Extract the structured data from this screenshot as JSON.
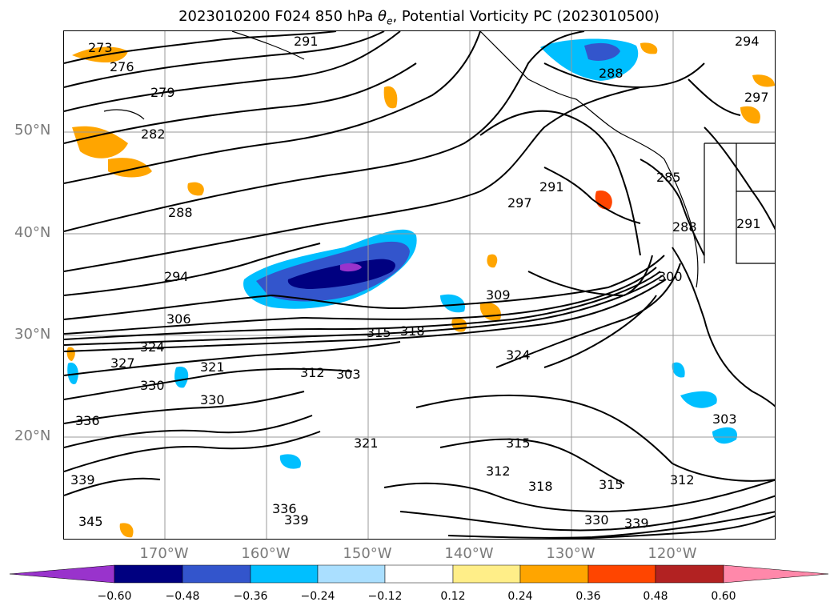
{
  "title": "2023010200 F024 850 hPa θe, Potential Vorticity PC (2023010500)",
  "title_parts": {
    "prefix": "2023010200 F024 850 hPa ",
    "theta": "θ",
    "sub": "e",
    "suffix": ", Potential Vorticity PC (2023010500)"
  },
  "map": {
    "lat_labels": [
      "50°N",
      "40°N",
      "30°N",
      "20°N"
    ],
    "lon_labels": [
      "170°W",
      "160°W",
      "150°W",
      "140°W",
      "130°W",
      "120°W"
    ],
    "contour_labels": [
      "273",
      "276",
      "279",
      "282",
      "288",
      "291",
      "294",
      "294",
      "297",
      "288",
      "291",
      "297",
      "285",
      "288",
      "291",
      "300",
      "306",
      "309",
      "315",
      "318",
      "321",
      "324",
      "324",
      "327",
      "330",
      "330",
      "336",
      "339",
      "345",
      "303",
      "303",
      "312",
      "315",
      "312",
      "318",
      "315",
      "312",
      "321",
      "336",
      "339",
      "330",
      "339"
    ],
    "grid": true
  },
  "colorbar": {
    "ticks": [
      "−0.60",
      "−0.48",
      "−0.36",
      "−0.24",
      "−0.12",
      "0.12",
      "0.24",
      "0.36",
      "0.48",
      "0.60"
    ],
    "colors": [
      "#9933cc",
      "#000080",
      "#3355cc",
      "#00bfff",
      "#aadfff",
      "#ffffff",
      "#ffee88",
      "#ffa500",
      "#ff4500",
      "#b22222",
      "#ff88aa"
    ]
  }
}
